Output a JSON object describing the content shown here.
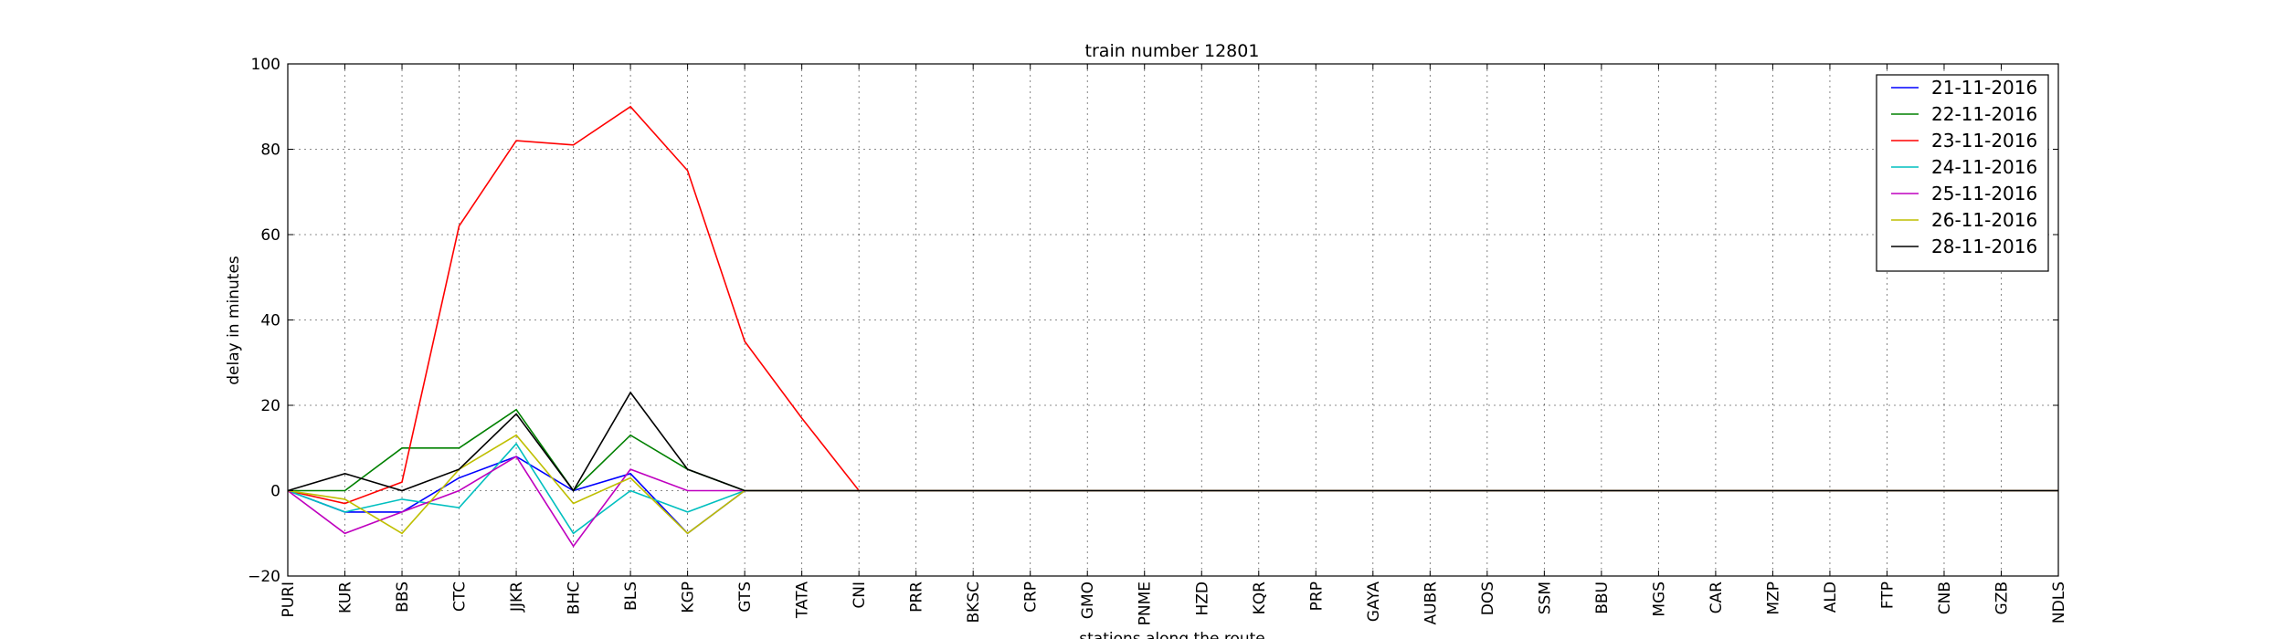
{
  "chart_data": {
    "type": "line",
    "title": "train number 12801",
    "xlabel": "stations along the route",
    "ylabel": "delay in minutes",
    "ylim": [
      -20,
      100
    ],
    "yticks": [
      -20,
      0,
      20,
      40,
      60,
      80,
      100
    ],
    "grid": true,
    "legend_position": "top-right",
    "categories": [
      "PURI",
      "KUR",
      "BBS",
      "CTC",
      "JJKR",
      "BHC",
      "BLS",
      "KGP",
      "GTS",
      "TATA",
      "CNI",
      "PRR",
      "BKSC",
      "CRP",
      "GMO",
      "PNME",
      "HZD",
      "KQR",
      "PRP",
      "GAYA",
      "AUBR",
      "DOS",
      "SSM",
      "BBU",
      "MGS",
      "CAR",
      "MZP",
      "ALD",
      "FTP",
      "CNB",
      "GZB",
      "NDLS"
    ],
    "series": [
      {
        "name": "21-11-2016",
        "color": "#0000ff",
        "values": [
          0,
          -5,
          -5,
          3,
          8,
          0,
          4,
          -10,
          0,
          0,
          0,
          0,
          0,
          0,
          0,
          0,
          0,
          0,
          0,
          0,
          0,
          0,
          0,
          0,
          0,
          0,
          0,
          0,
          0,
          0,
          0,
          0
        ]
      },
      {
        "name": "22-11-2016",
        "color": "#008000",
        "values": [
          0,
          0,
          10,
          10,
          19,
          0,
          13,
          5,
          0,
          0,
          0,
          0,
          0,
          0,
          0,
          0,
          0,
          0,
          0,
          0,
          0,
          0,
          0,
          0,
          0,
          0,
          0,
          0,
          0,
          0,
          0,
          0
        ]
      },
      {
        "name": "23-11-2016",
        "color": "#ff0000",
        "values": [
          0,
          -3,
          2,
          62,
          82,
          81,
          90,
          75,
          35,
          17,
          0,
          0,
          0,
          0,
          0,
          0,
          0,
          0,
          0,
          0,
          0,
          0,
          0,
          0,
          0,
          0,
          0,
          0,
          0,
          0,
          0,
          0
        ]
      },
      {
        "name": "24-11-2016",
        "color": "#00bfbf",
        "values": [
          0,
          -5,
          -2,
          -4,
          11,
          -10,
          0,
          -5,
          0,
          0,
          0,
          0,
          0,
          0,
          0,
          0,
          0,
          0,
          0,
          0,
          0,
          0,
          0,
          0,
          0,
          0,
          0,
          0,
          0,
          0,
          0,
          0
        ]
      },
      {
        "name": "25-11-2016",
        "color": "#bf00bf",
        "values": [
          0,
          -10,
          -5,
          0,
          8,
          -13,
          5,
          0,
          0,
          0,
          0,
          0,
          0,
          0,
          0,
          0,
          0,
          0,
          0,
          0,
          0,
          0,
          0,
          0,
          0,
          0,
          0,
          0,
          0,
          0,
          0,
          0
        ]
      },
      {
        "name": "26-11-2016",
        "color": "#bfbf00",
        "values": [
          0,
          -2,
          -10,
          5,
          13,
          -3,
          3,
          -10,
          0,
          0,
          0,
          0,
          0,
          0,
          0,
          0,
          0,
          0,
          0,
          0,
          0,
          0,
          0,
          0,
          0,
          0,
          0,
          0,
          0,
          0,
          0,
          0
        ]
      },
      {
        "name": "28-11-2016",
        "color": "#000000",
        "values": [
          0,
          4,
          0,
          5,
          18,
          0,
          23,
          5,
          0,
          0,
          0,
          0,
          0,
          0,
          0,
          0,
          0,
          0,
          0,
          0,
          0,
          0,
          0,
          0,
          0,
          0,
          0,
          0,
          0,
          0,
          0,
          0
        ]
      }
    ]
  }
}
